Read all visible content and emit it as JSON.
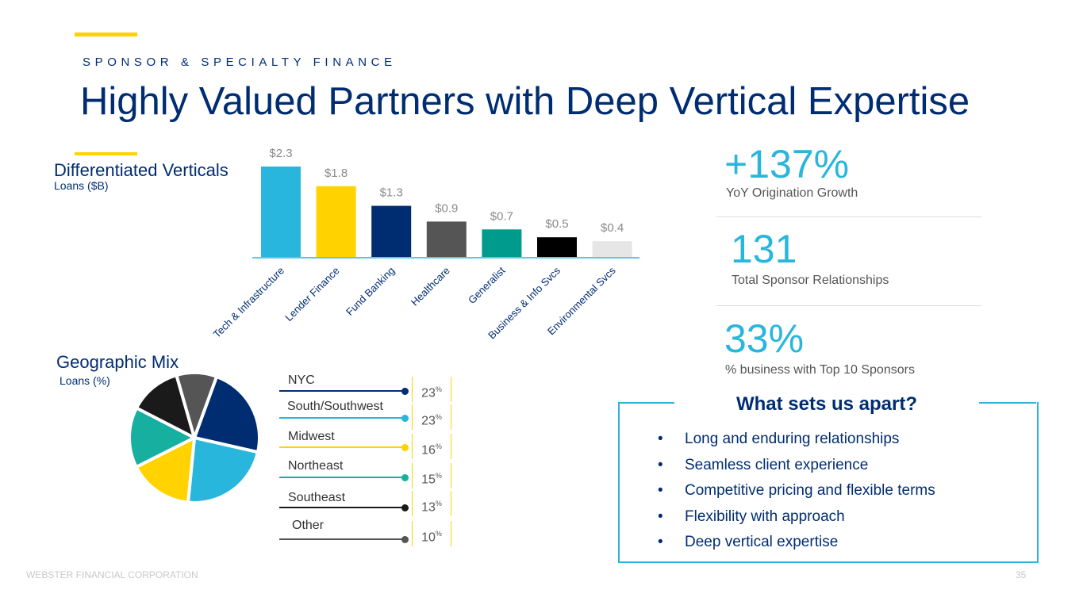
{
  "header": {
    "eyebrow": "SPONSOR & SPECIALTY FINANCE",
    "title": "Highly Valued Partners with Deep Vertical Expertise"
  },
  "verticals": {
    "title": "Differentiated Verticals",
    "subtitle": "Loans ($B)"
  },
  "geographic": {
    "title": "Geographic Mix",
    "subtitle": "Loans (%)",
    "pct_sign": "%"
  },
  "chart_data": [
    {
      "type": "bar",
      "title": "Differentiated Verticals",
      "ylabel": "Loans ($B)",
      "categories": [
        "Tech & Infrastructure",
        "Lender Finance",
        "Fund Banking",
        "Healthcare",
        "Generalist",
        "Business & Info Svcs",
        "Environmental Svcs"
      ],
      "values": [
        2.3,
        1.8,
        1.3,
        0.9,
        0.7,
        0.5,
        0.4
      ],
      "labels": [
        "$2.3",
        "$1.8",
        "$1.3",
        "$0.9",
        "$0.7",
        "$0.5",
        "$0.4"
      ],
      "colors": [
        "#29B6DC",
        "#FFD200",
        "#002D72",
        "#555555",
        "#009B8D",
        "#000000",
        "#E6E6E6"
      ],
      "ylim": [
        0,
        2.3
      ]
    },
    {
      "type": "pie",
      "title": "Geographic Mix",
      "unit": "Loans (%)",
      "categories": [
        "NYC",
        "South/Southwest",
        "Midwest",
        "Northeast",
        "Southeast",
        "Other"
      ],
      "values": [
        23,
        23,
        16,
        15,
        13,
        10
      ],
      "colors": [
        "#002D72",
        "#29B6DC",
        "#FFD200",
        "#17B0A0",
        "#1A1A1A",
        "#555555"
      ]
    }
  ],
  "stats": [
    {
      "value": "+137%",
      "label": "YoY Origination Growth"
    },
    {
      "value": "131",
      "label": "Total Sponsor Relationships"
    },
    {
      "value": "33%",
      "label": "% business with Top 10 Sponsors"
    }
  ],
  "apart": {
    "title": "What sets us apart?",
    "bullet": "•",
    "items": [
      "Long and enduring relationships",
      "Seamless client experience",
      "Competitive pricing and flexible terms",
      "Flexibility with approach",
      "Deep vertical expertise"
    ]
  },
  "footer": {
    "company": "WEBSTER FINANCIAL CORPORATION",
    "page": "35"
  }
}
